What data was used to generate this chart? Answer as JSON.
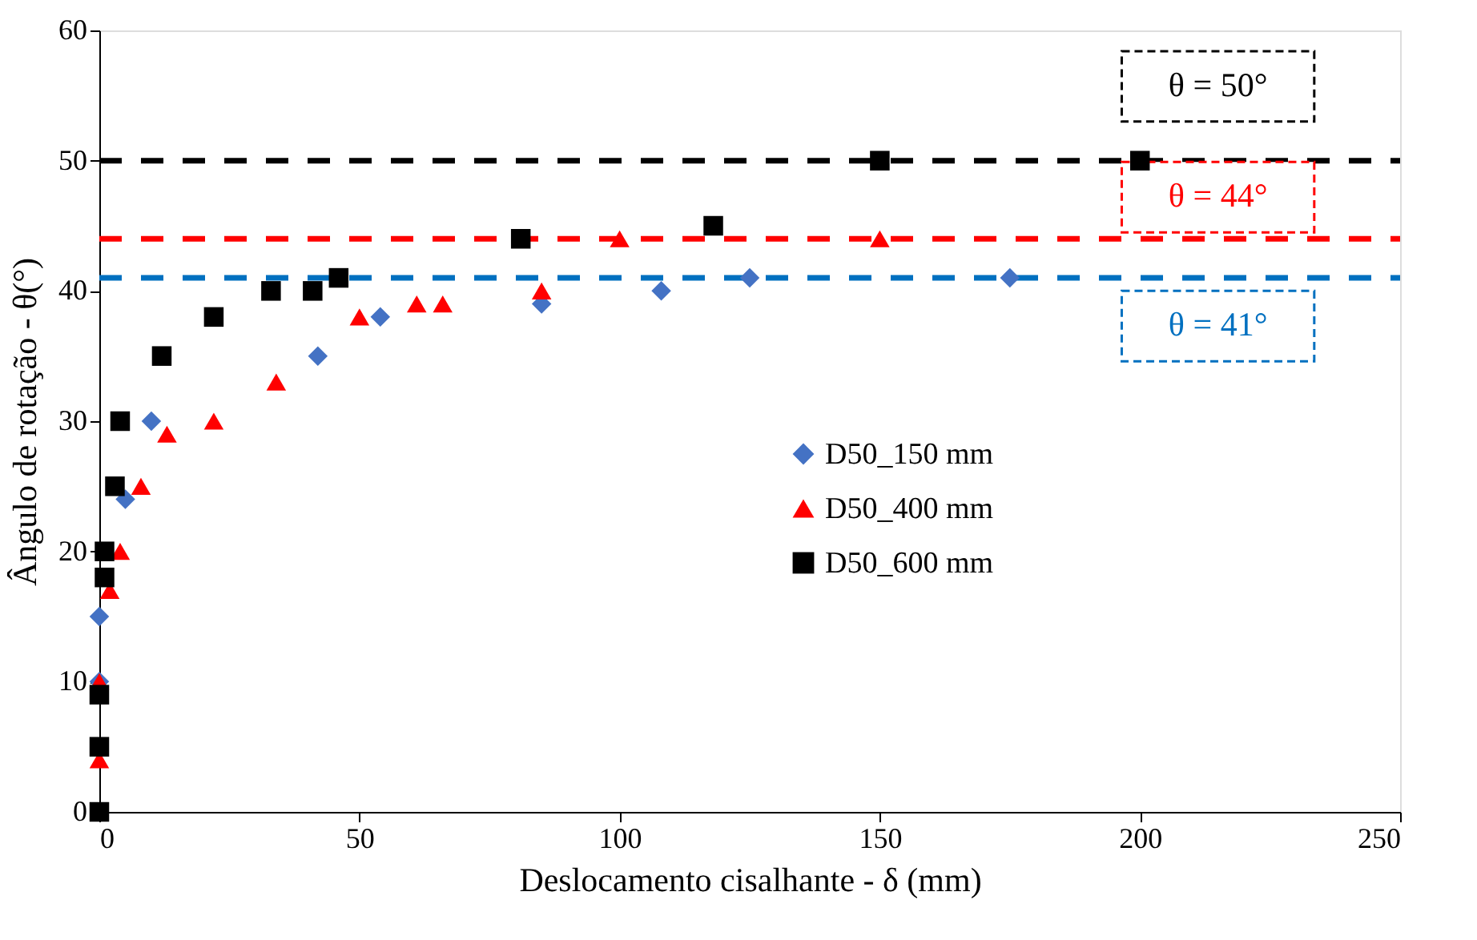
{
  "chart_data": {
    "type": "scatter",
    "xlabel": "Deslocamento cisalhante - δ (mm)",
    "ylabel": "Ângulo de rotação - θ(°)",
    "xlim": [
      0,
      250
    ],
    "xticks": [
      0,
      50,
      100,
      150,
      200,
      250
    ],
    "ylim": [
      0,
      60
    ],
    "yticks": [
      0,
      10,
      20,
      30,
      40,
      50,
      60
    ],
    "grid": false,
    "legend": "right",
    "series": [
      {
        "name": "D50_150 mm",
        "color": "#4472c4",
        "marker": "diamond",
        "x": [
          0,
          0,
          5,
          10,
          42,
          54,
          85,
          108,
          125,
          175
        ],
        "values": [
          10,
          15,
          24,
          30,
          35,
          38,
          39,
          40,
          41,
          41
        ]
      },
      {
        "name": "D50_400 mm",
        "color": "#ff0000",
        "marker": "triangle",
        "x": [
          0,
          0,
          2,
          4,
          8,
          13,
          22,
          34,
          50,
          61,
          66,
          85,
          100,
          150
        ],
        "values": [
          4,
          10,
          17,
          20,
          25,
          29,
          30,
          33,
          38,
          39,
          39,
          40,
          44,
          44
        ]
      },
      {
        "name": "D50_600 mm",
        "color": "#000000",
        "marker": "square",
        "x": [
          0,
          0,
          0,
          1,
          1,
          3,
          4,
          12,
          22,
          33,
          41,
          46,
          81,
          118,
          150,
          200
        ],
        "values": [
          0,
          5,
          9,
          18,
          20,
          25,
          30,
          35,
          38,
          40,
          40,
          41,
          44,
          45,
          50,
          50
        ]
      }
    ],
    "ref_lines": [
      {
        "axis": "y",
        "value": 50,
        "label": "θ = 50°",
        "color": "#000000",
        "line_style": "dashed"
      },
      {
        "axis": "y",
        "value": 44,
        "label": "θ = 44°",
        "color": "#ff0000",
        "line_style": "dashed"
      },
      {
        "axis": "y",
        "value": 41,
        "label": "θ = 41°",
        "color": "#0070c0",
        "line_style": "dashed"
      }
    ]
  }
}
